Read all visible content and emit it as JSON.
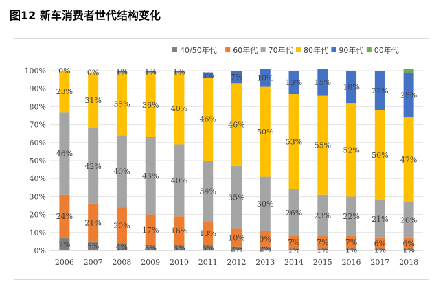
{
  "figure_title": "图12  新车消费者世代结构变化",
  "colors": {
    "40/50年代": "#7f7f7f",
    "60年代": "#ed7d31",
    "70年代": "#a5a5a5",
    "80年代": "#ffc000",
    "90年代": "#4472c4",
    "00年代": "#70ad47"
  },
  "chart_data": {
    "type": "bar",
    "stacked": true,
    "categories": [
      "2006",
      "2007",
      "2008",
      "2009",
      "2010",
      "2011",
      "2012",
      "2013",
      "2014",
      "2015",
      "2016",
      "2017",
      "2018"
    ],
    "ylim": [
      0,
      100
    ],
    "yticks": [
      "0%",
      "10%",
      "20%",
      "30%",
      "40%",
      "50%",
      "60%",
      "70%",
      "80%",
      "90%",
      "100%"
    ],
    "grid": true,
    "legend": "top",
    "series": [
      {
        "name": "40/50年代",
        "values": [
          7,
          5,
          4,
          3,
          3,
          3,
          2,
          2,
          1,
          1,
          1,
          1,
          1
        ],
        "labels": [
          "7%",
          "5%",
          "4%",
          "3%",
          "3%",
          "3%",
          "2%",
          "2%",
          "1%",
          "1%",
          "1%",
          "1%",
          "1%"
        ]
      },
      {
        "name": "60年代",
        "values": [
          24,
          21,
          20,
          17,
          16,
          13,
          10,
          9,
          7,
          7,
          7,
          6,
          6
        ],
        "labels": [
          "24%",
          "21%",
          "20%",
          "17%",
          "16%",
          "13%",
          "10%",
          "9%",
          "7%",
          "7%",
          "7%",
          "6%",
          "6%"
        ]
      },
      {
        "name": "70年代",
        "values": [
          46,
          42,
          40,
          43,
          40,
          34,
          35,
          30,
          26,
          23,
          22,
          21,
          20
        ],
        "labels": [
          "46%",
          "42%",
          "40%",
          "43%",
          "40%",
          "34%",
          "35%",
          "30%",
          "26%",
          "23%",
          "22%",
          "21%",
          "20%"
        ]
      },
      {
        "name": "80年代",
        "values": [
          23,
          31,
          35,
          36,
          40,
          46,
          46,
          50,
          53,
          55,
          52,
          50,
          47
        ],
        "labels": [
          "23%",
          "31%",
          "35%",
          "36%",
          "40%",
          "46%",
          "46%",
          "50%",
          "53%",
          "55%",
          "52%",
          "50%",
          "47%"
        ]
      },
      {
        "name": "90年代",
        "values": [
          0,
          0,
          1,
          1,
          1,
          3,
          7,
          10,
          13,
          15,
          18,
          22,
          25
        ],
        "labels": [
          "0%",
          "0%",
          "1%",
          "1%",
          "1%",
          "3%",
          "7%",
          "10%",
          "13%",
          "15%",
          "18%",
          "22%",
          "25%"
        ]
      },
      {
        "name": "00年代",
        "values": [
          0,
          0,
          0,
          0,
          0,
          0,
          0,
          0,
          0,
          0,
          0,
          0,
          2
        ],
        "labels": [
          "",
          "",
          "",
          "",
          "",
          "",
          "",
          "",
          "",
          "",
          "",
          "",
          ""
        ]
      }
    ]
  }
}
